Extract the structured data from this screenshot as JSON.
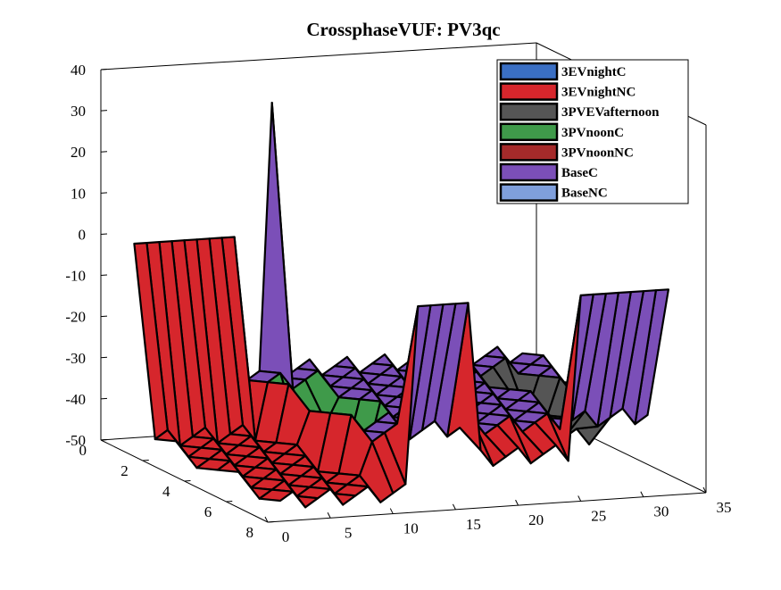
{
  "chart_data": {
    "type": "surface3d",
    "title": "CrossphaseVUF: PV3qc",
    "xlabel": "",
    "ylabel": "",
    "zlabel": "",
    "xlim": [
      0,
      35
    ],
    "ylim": [
      0,
      8
    ],
    "zlim": [
      -50,
      40
    ],
    "x_ticks": [
      "0",
      "5",
      "10",
      "15",
      "20",
      "25",
      "30",
      "35"
    ],
    "y_ticks": [
      "0",
      "2",
      "4",
      "6",
      "8"
    ],
    "z_ticks": [
      "40",
      "30",
      "20",
      "10",
      "0",
      "-10",
      "-20",
      "-30",
      "-40",
      "-50"
    ],
    "legend_position": "top-right",
    "series": [
      {
        "name": "3EVnightC",
        "color": "#3a6fc4"
      },
      {
        "name": "3EVnightNC",
        "color": "#d6262c"
      },
      {
        "name": "3PVEVafternoon",
        "color": "#555555"
      },
      {
        "name": "3PVnoonC",
        "color": "#3f9a4a"
      },
      {
        "name": "3PVnoonNC",
        "color": "#a52a2a"
      },
      {
        "name": "BaseC",
        "color": "#7b4fb8"
      },
      {
        "name": "BaseNC",
        "color": "#7f9fdc"
      }
    ],
    "surface": {
      "baseline": 0,
      "spike": {
        "series": "3PVnoonC",
        "x": 12,
        "y": 1,
        "value": 32
      },
      "dips": [
        {
          "series": "3EVnightNC",
          "x_range": [
            1,
            11
          ],
          "y_range": [
            2,
            8
          ],
          "value": -47
        },
        {
          "series": "3EVnightNC",
          "x_range": [
            17,
            24
          ],
          "y_range": [
            2,
            8
          ],
          "value": -40
        },
        {
          "series": "BaseC",
          "x_range": [
            10,
            32
          ],
          "y_range": [
            1,
            7
          ],
          "value": -35
        },
        {
          "series": "3PVnoonC",
          "x_range": [
            11,
            13
          ],
          "y_range": [
            3,
            5
          ],
          "value": -45
        },
        {
          "series": "3PVEVafternoon",
          "x_range": [
            27,
            29
          ],
          "y_range": [
            3,
            6
          ],
          "value": -42
        }
      ]
    }
  }
}
